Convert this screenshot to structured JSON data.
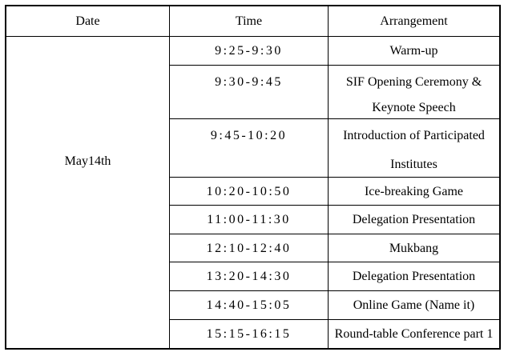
{
  "table": {
    "headers": [
      "Date",
      "Time",
      "Arrangement"
    ],
    "date": "May14th",
    "rows": [
      {
        "time": "9:25-9:30",
        "arrangement": "Warm-up"
      },
      {
        "time": "9:30-9:45",
        "arrangement": "SIF Opening Ceremony & Keynote Speech"
      },
      {
        "time": "9:45-10:20",
        "arrangement": "Introduction of Participated Institutes"
      },
      {
        "time": "10:20-10:50",
        "arrangement": "Ice-breaking Game"
      },
      {
        "time": "11:00-11:30",
        "arrangement": "Delegation Presentation"
      },
      {
        "time": "12:10-12:40",
        "arrangement": "Mukbang"
      },
      {
        "time": "13:20-14:30",
        "arrangement": "Delegation Presentation"
      },
      {
        "time": "14:40-15:05",
        "arrangement": "Online Game (Name it)"
      },
      {
        "time": "15:15-16:15",
        "arrangement": "Round-table Conference part 1"
      }
    ],
    "colors": {
      "border": "#000000",
      "text": "#000000",
      "background": "#ffffff"
    }
  }
}
